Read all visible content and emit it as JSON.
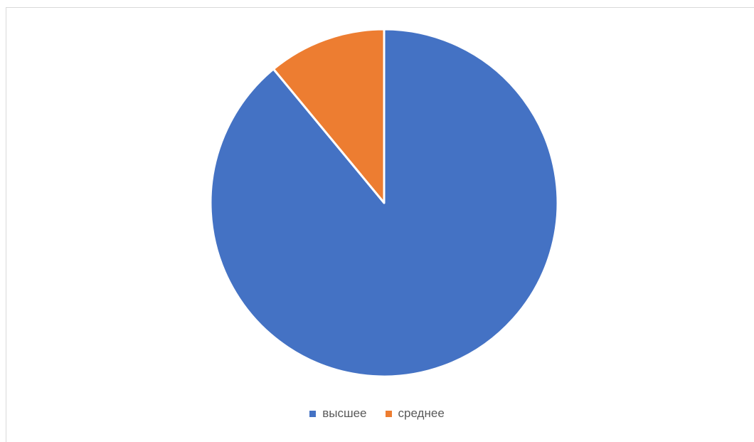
{
  "chart_data": {
    "type": "pie",
    "title": "",
    "categories": [
      "высшее",
      "среднее"
    ],
    "values": [
      89,
      11
    ],
    "colors": [
      "#4472c4",
      "#ed7d31"
    ],
    "start_angle_deg": 0,
    "direction": "clockwise",
    "legend_position": "bottom"
  }
}
